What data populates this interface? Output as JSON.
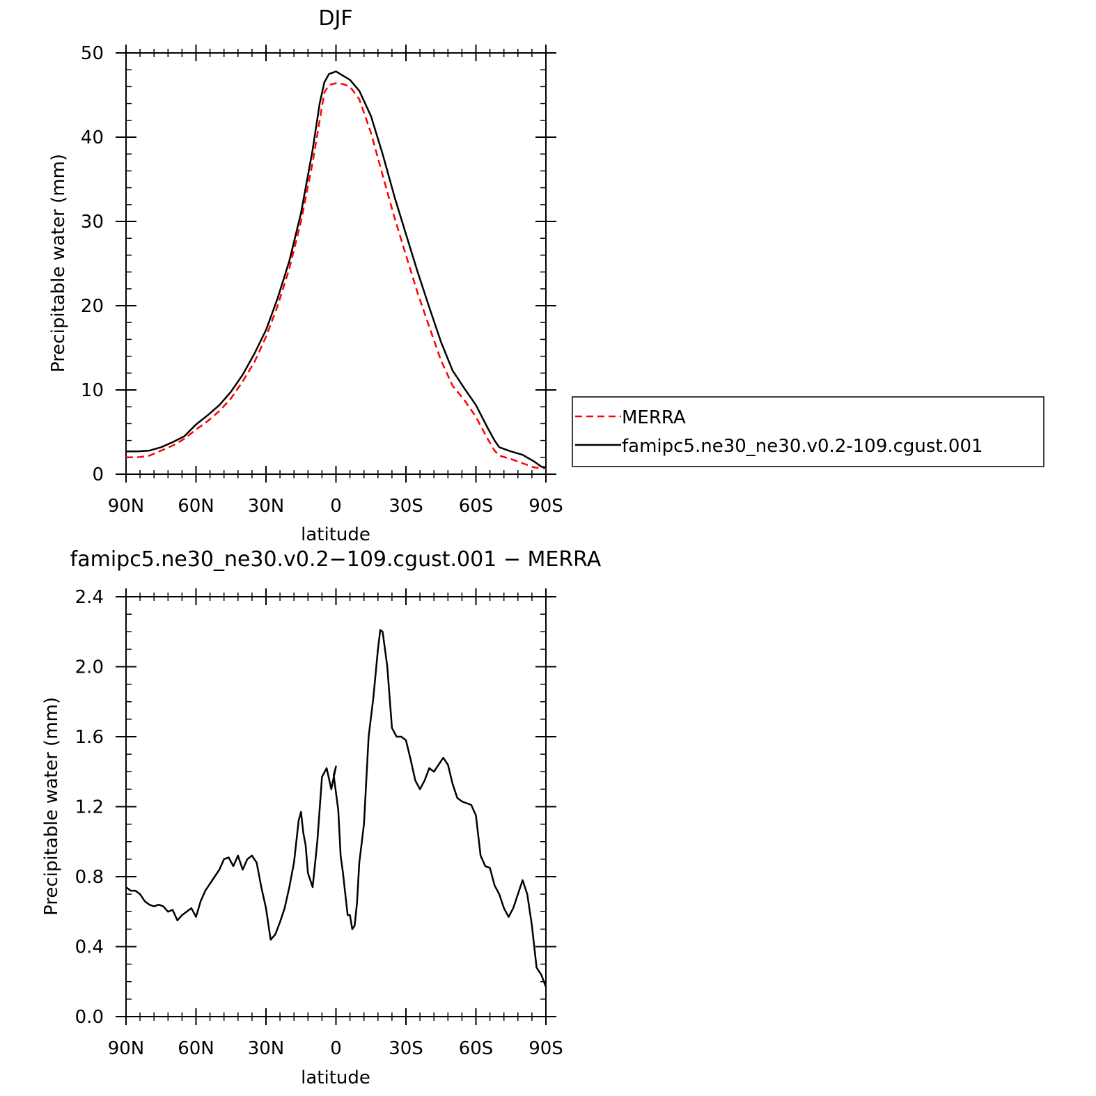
{
  "colors": {
    "merra": "#ff0000",
    "model": "#000000",
    "axis": "#000000"
  },
  "chart_data": [
    {
      "type": "line",
      "title": "DJF",
      "xlabel": "latitude",
      "ylabel": "Precipitable water (mm)",
      "x_tick_values": [
        -90,
        -60,
        -30,
        0,
        30,
        60,
        90
      ],
      "x_tick_labels": [
        "90N",
        "60N",
        "30N",
        "0",
        "30S",
        "60S",
        "90S"
      ],
      "xlim": [
        -90,
        90
      ],
      "y_tick_values": [
        0,
        10,
        20,
        30,
        40,
        50
      ],
      "y_tick_labels": [
        "0",
        "10",
        "20",
        "30",
        "40",
        "50"
      ],
      "ylim": [
        0,
        50
      ],
      "grid": false,
      "legend_position": "right",
      "x": [
        -90,
        -85,
        -80,
        -75,
        -70,
        -65,
        -60,
        -55,
        -50,
        -45,
        -40,
        -35,
        -30,
        -25,
        -20,
        -15,
        -10,
        -7,
        -5,
        -3,
        0,
        3,
        6,
        10,
        15,
        20,
        25,
        30,
        35,
        40,
        45,
        50,
        55,
        60,
        65,
        68,
        70,
        75,
        80,
        85,
        88,
        90
      ],
      "series": [
        {
          "name": "MERRA",
          "style": "dashed",
          "values": [
            2.0,
            2.0,
            2.2,
            2.8,
            3.4,
            4.2,
            5.3,
            6.3,
            7.5,
            9.0,
            11.0,
            13.3,
            16.3,
            20.0,
            24.4,
            30.0,
            37.0,
            42.0,
            45.3,
            46.2,
            46.4,
            46.3,
            46.0,
            44.5,
            40.5,
            35.5,
            30.5,
            26.0,
            21.5,
            17.5,
            13.5,
            10.5,
            8.8,
            6.8,
            4.2,
            2.8,
            2.2,
            1.8,
            1.3,
            0.8,
            0.7,
            0.7
          ]
        },
        {
          "name": "famipc5.ne30_ne30.v0.2-109.cgust.001",
          "style": "solid",
          "values": [
            2.7,
            2.7,
            2.8,
            3.2,
            3.8,
            4.5,
            5.9,
            7.0,
            8.2,
            9.8,
            11.8,
            14.3,
            17.1,
            20.9,
            25.3,
            31.0,
            38.5,
            44.0,
            46.5,
            47.5,
            47.8,
            47.3,
            46.8,
            45.5,
            42.5,
            38.0,
            33.0,
            28.5,
            24.0,
            19.8,
            15.7,
            12.3,
            10.2,
            8.2,
            5.5,
            4.0,
            3.2,
            2.7,
            2.3,
            1.5,
            0.9,
            0.8
          ]
        }
      ]
    },
    {
      "type": "line",
      "title": "famipc5.ne30_ne30.v0.2−109.cgust.001  −  MERRA",
      "xlabel": "latitude",
      "ylabel": "Precipitable water (mm)",
      "x_tick_values": [
        -90,
        -60,
        -30,
        0,
        30,
        60,
        90
      ],
      "x_tick_labels": [
        "90N",
        "60N",
        "30N",
        "0",
        "30S",
        "60S",
        "90S"
      ],
      "xlim": [
        -90,
        90
      ],
      "y_tick_values": [
        0,
        0.4,
        0.8,
        1.2,
        1.6,
        2.0,
        2.4
      ],
      "y_tick_labels": [
        "0.0",
        "0.4",
        "0.8",
        "1.2",
        "1.6",
        "2.0",
        "2.4"
      ],
      "ylim": [
        0,
        2.4
      ],
      "grid": false,
      "x": [
        -90,
        -88,
        -86,
        -84,
        -82,
        -80,
        -78,
        -76,
        -74,
        -72,
        -70,
        -68,
        -66,
        -64,
        -62,
        -60,
        -58,
        -56,
        -54,
        -52,
        -50,
        -48,
        -46,
        -44,
        -42,
        -40,
        -38,
        -36,
        -34,
        -32,
        -30,
        -28,
        -26,
        -24,
        -22,
        -20,
        -18,
        -16,
        -15,
        -14,
        -13,
        -12,
        -10,
        -8,
        -6,
        -4,
        -2,
        0,
        -1,
        1,
        2,
        3,
        4,
        5,
        6,
        7,
        8,
        9,
        10,
        12,
        14,
        16,
        18,
        19,
        20,
        21,
        22,
        24,
        26,
        28,
        30,
        32,
        34,
        36,
        38,
        40,
        42,
        44,
        46,
        48,
        50,
        52,
        54,
        56,
        58,
        60,
        62,
        64,
        66,
        68,
        70,
        72,
        74,
        76,
        78,
        80,
        82,
        84,
        86,
        88,
        90
      ],
      "series": [
        {
          "name": "",
          "style": "solid",
          "values": [
            0.74,
            0.72,
            0.72,
            0.7,
            0.66,
            0.64,
            0.63,
            0.64,
            0.63,
            0.6,
            0.61,
            0.55,
            0.58,
            0.6,
            0.62,
            0.57,
            0.66,
            0.72,
            0.76,
            0.8,
            0.84,
            0.9,
            0.91,
            0.86,
            0.92,
            0.84,
            0.9,
            0.92,
            0.88,
            0.74,
            0.62,
            0.44,
            0.47,
            0.54,
            0.62,
            0.74,
            0.88,
            1.12,
            1.17,
            1.05,
            0.98,
            0.82,
            0.74,
            1.0,
            1.37,
            1.42,
            1.3,
            1.43,
            1.38,
            1.18,
            0.92,
            0.82,
            0.7,
            0.58,
            0.58,
            0.5,
            0.52,
            0.65,
            0.88,
            1.1,
            1.6,
            1.82,
            2.1,
            2.21,
            2.2,
            2.1,
            2.0,
            1.65,
            1.6,
            1.6,
            1.58,
            1.47,
            1.35,
            1.3,
            1.35,
            1.42,
            1.4,
            1.44,
            1.48,
            1.44,
            1.33,
            1.25,
            1.23,
            1.22,
            1.21,
            1.15,
            0.92,
            0.86,
            0.85,
            0.75,
            0.7,
            0.62,
            0.57,
            0.62,
            0.7,
            0.78,
            0.7,
            0.52,
            0.28,
            0.24,
            0.17
          ]
        }
      ]
    }
  ]
}
